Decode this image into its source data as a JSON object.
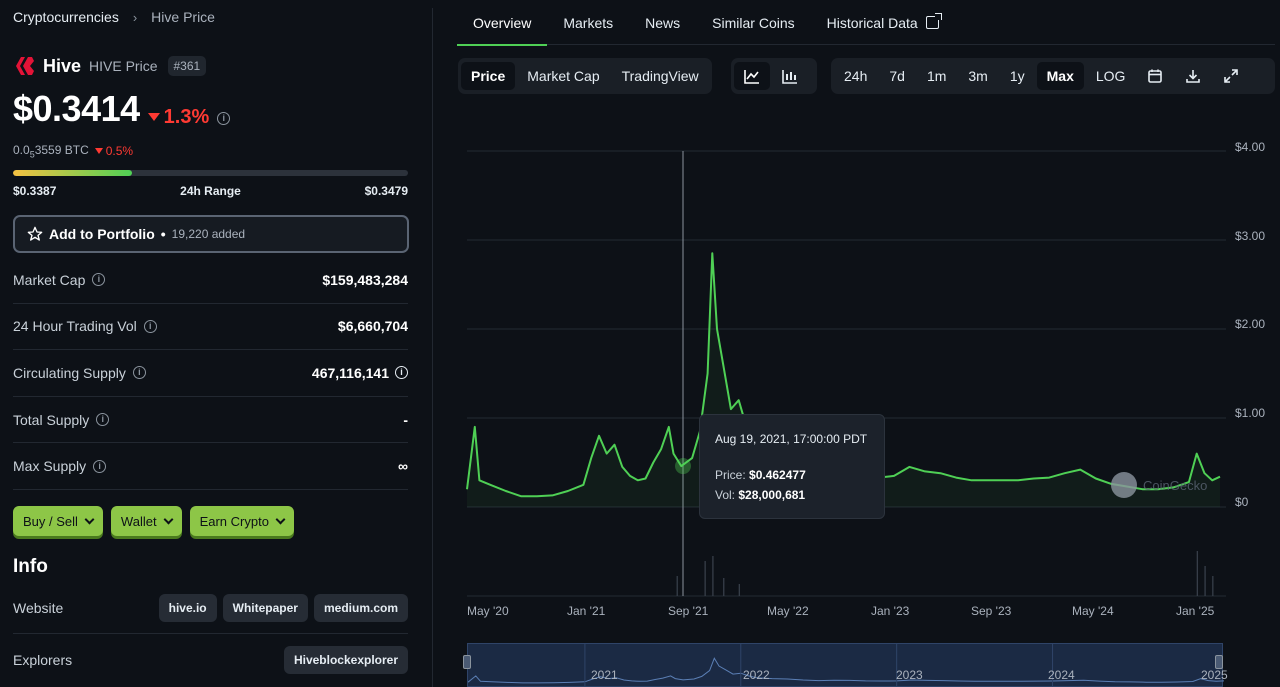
{
  "breadcrumb": {
    "root": "Cryptocurrencies",
    "current": "Hive Price"
  },
  "coin": {
    "name": "Hive",
    "symbol_label": "HIVE Price",
    "rank": "#361",
    "price": "$0.3414",
    "change_24h": "1.3%",
    "btc_price_prefix": "0.0",
    "btc_price_sub": "5",
    "btc_price_suffix": "3559 BTC",
    "btc_change": "0.5%",
    "range_low": "$0.3387",
    "range_label": "24h Range",
    "range_high": "$0.3479",
    "range_position": 0.3
  },
  "portfolio": {
    "label": "Add to Portfolio",
    "bullet": "•",
    "added": "19,220 added"
  },
  "stats": [
    {
      "label": "Market Cap",
      "value": "$159,483,284"
    },
    {
      "label": "24 Hour Trading Vol",
      "value": "$6,660,704"
    },
    {
      "label": "Circulating Supply",
      "value": "467,116,141"
    },
    {
      "label": "Total Supply",
      "value": "-"
    },
    {
      "label": "Max Supply",
      "value": "∞"
    }
  ],
  "actions": [
    "Buy / Sell",
    "Wallet",
    "Earn Crypto"
  ],
  "info": {
    "title": "Info",
    "website_label": "Website",
    "websites": [
      "hive.io",
      "Whitepaper",
      "medium.com"
    ],
    "explorers_label": "Explorers",
    "explorers": [
      "Hiveblockexplorer"
    ]
  },
  "tabs": [
    "Overview",
    "Markets",
    "News",
    "Similar Coins",
    "Historical Data"
  ],
  "chart_types": [
    "Price",
    "Market Cap",
    "TradingView"
  ],
  "ranges": [
    "24h",
    "7d",
    "1m",
    "3m",
    "1y",
    "Max",
    "LOG"
  ],
  "colors": {
    "accent": "#4fd055",
    "down": "#ff3a33",
    "button": "#8dc647"
  },
  "tooltip": {
    "date": "Aug 19, 2021, 17:00:00 PDT",
    "price_label": "Price:",
    "price": "$0.462477",
    "vol_label": "Vol:",
    "vol": "$28,000,681"
  },
  "watermark": "CoinGecko",
  "chart_data": {
    "type": "line",
    "y_ticks": [
      "$4.00",
      "$3.00",
      "$2.00",
      "$1.00",
      "$0"
    ],
    "x_ticks": [
      "May '20",
      "Jan '21",
      "Sep '21",
      "May '22",
      "Jan '23",
      "Sep '23",
      "May '24",
      "Jan '25"
    ],
    "navigator_years": [
      "2021",
      "2022",
      "2023",
      "2024",
      "2025"
    ],
    "ylim": [
      0,
      4
    ],
    "series": [
      {
        "values": [
          [
            2020.25,
            0.2
          ],
          [
            2020.3,
            0.9
          ],
          [
            2020.33,
            0.3
          ],
          [
            2020.4,
            0.25
          ],
          [
            2020.5,
            0.18
          ],
          [
            2020.6,
            0.12
          ],
          [
            2020.7,
            0.12
          ],
          [
            2020.8,
            0.13
          ],
          [
            2020.9,
            0.18
          ],
          [
            2021.0,
            0.25
          ],
          [
            2021.05,
            0.55
          ],
          [
            2021.1,
            0.8
          ],
          [
            2021.15,
            0.6
          ],
          [
            2021.2,
            0.7
          ],
          [
            2021.25,
            0.45
          ],
          [
            2021.3,
            0.35
          ],
          [
            2021.35,
            0.3
          ],
          [
            2021.4,
            0.32
          ],
          [
            2021.45,
            0.5
          ],
          [
            2021.5,
            0.65
          ],
          [
            2021.55,
            0.9
          ],
          [
            2021.58,
            0.6
          ],
          [
            2021.63,
            0.46
          ],
          [
            2021.7,
            0.55
          ],
          [
            2021.75,
            0.85
          ],
          [
            2021.8,
            1.5
          ],
          [
            2021.83,
            2.85
          ],
          [
            2021.86,
            2.0
          ],
          [
            2021.9,
            1.6
          ],
          [
            2021.95,
            1.1
          ],
          [
            2022.0,
            1.2
          ],
          [
            2022.05,
            0.9
          ],
          [
            2022.1,
            0.7
          ],
          [
            2022.2,
            0.6
          ],
          [
            2022.3,
            0.55
          ],
          [
            2022.4,
            0.45
          ],
          [
            2022.5,
            0.38
          ],
          [
            2022.6,
            0.42
          ],
          [
            2022.7,
            0.4
          ],
          [
            2022.8,
            0.35
          ],
          [
            2022.9,
            0.33
          ],
          [
            2023.0,
            0.35
          ],
          [
            2023.1,
            0.45
          ],
          [
            2023.2,
            0.4
          ],
          [
            2023.3,
            0.38
          ],
          [
            2023.4,
            0.33
          ],
          [
            2023.5,
            0.3
          ],
          [
            2023.6,
            0.3
          ],
          [
            2023.7,
            0.3
          ],
          [
            2023.8,
            0.3
          ],
          [
            2023.9,
            0.32
          ],
          [
            2024.0,
            0.33
          ],
          [
            2024.1,
            0.38
          ],
          [
            2024.2,
            0.42
          ],
          [
            2024.3,
            0.32
          ],
          [
            2024.4,
            0.26
          ],
          [
            2024.5,
            0.23
          ],
          [
            2024.6,
            0.2
          ],
          [
            2024.7,
            0.2
          ],
          [
            2024.8,
            0.22
          ],
          [
            2024.9,
            0.28
          ],
          [
            2024.95,
            0.6
          ],
          [
            2025.0,
            0.38
          ],
          [
            2025.05,
            0.3
          ],
          [
            2025.1,
            0.34
          ]
        ]
      }
    ]
  }
}
